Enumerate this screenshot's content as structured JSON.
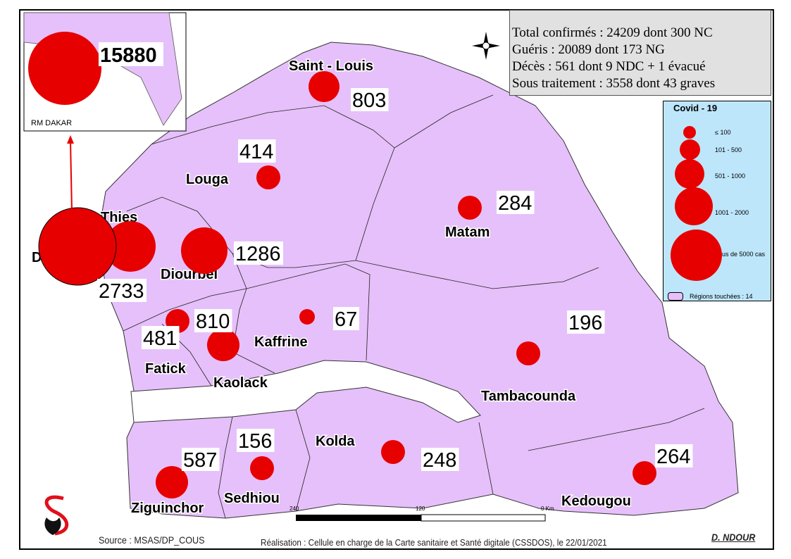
{
  "stats": {
    "lines": [
      "Total confirmés : 24209  dont 300 NC",
      "Guéris : 20089  dont  173 NG",
      "Décès : 561 dont 9 NDC + 1 évacué",
      "Sous traitement : 3558 dont 43 graves"
    ]
  },
  "legend": {
    "title": "Covid - 19",
    "classes": [
      "≤ 100",
      "101 - 500",
      "501 - 1000",
      "1001 - 2000",
      "us de 5000 cas"
    ],
    "regions_label": "Régions touchées : 14",
    "circle_color": "#e60000",
    "region_color": "#e6c0fa"
  },
  "inset": {
    "label": "RM DAKAR",
    "value": "15880"
  },
  "regions": [
    {
      "name": "Saint - Louis",
      "value": "803"
    },
    {
      "name": "Louga",
      "value": "414"
    },
    {
      "name": "Matam",
      "value": "284"
    },
    {
      "name": "Thies",
      "value": "2733"
    },
    {
      "name": "D",
      "value": ""
    },
    {
      "name": "Diourbel",
      "value": "1286"
    },
    {
      "name": "Fatick",
      "value": "481"
    },
    {
      "name": "Kaolack",
      "value": "810"
    },
    {
      "name": "Kaffrine",
      "value": "67"
    },
    {
      "name": "Tambacounda",
      "value": "196"
    },
    {
      "name": "Kolda",
      "value": "248"
    },
    {
      "name": "Sedhiou",
      "value": "156"
    },
    {
      "name": "Ziguinchor",
      "value": "587"
    },
    {
      "name": "Kedougou",
      "value": "264"
    }
  ],
  "scale": {
    "ticks": [
      "240",
      "120",
      "0 Km"
    ]
  },
  "footer": {
    "source": "Source : MSAS/DP_COUS",
    "credit": "Réalisation : Cellule en charge de la Carte sanitaire et Santé digitale (CSSDOS), le 22/01/2021",
    "author": "D. NDOUR"
  },
  "colors": {
    "region_fill": "#e6c0fa",
    "circle": "#e60000",
    "stats_bg": "#e1e1e1",
    "legend_bg": "#bde6fb"
  }
}
